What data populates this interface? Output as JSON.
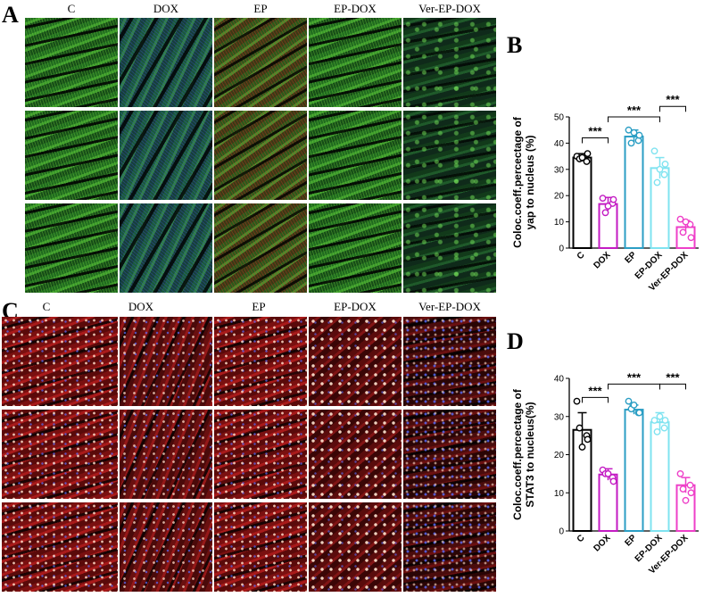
{
  "figure": {
    "panel_letters": {
      "a": "A",
      "b": "B",
      "c": "C",
      "d": "D"
    },
    "image_columns": [
      "C",
      "DOX",
      "EP",
      "EP-DOX",
      "Ver-EP-DOX"
    ],
    "colors": {
      "C": "#000000",
      "DOX": "#c31bc3",
      "EP": "#2b9ec4",
      "EP-DOX": "#7fe3f0",
      "Ver-EP-DOX": "#ee3fc8"
    }
  },
  "chart_data": [
    {
      "type": "bar",
      "panel": "B",
      "categories": [
        "C",
        "DOX",
        "EP",
        "EP-DOX",
        "Ver-EP-DOX"
      ],
      "values": [
        34.5,
        16.8,
        42.5,
        30.5,
        8.0
      ],
      "errors": [
        1.5,
        2.5,
        2.5,
        4.0,
        2.5
      ],
      "points": [
        [
          35,
          33,
          34,
          36,
          34.5
        ],
        [
          19,
          17,
          13.5,
          18.5,
          16
        ],
        [
          45,
          41,
          40,
          43,
          44
        ],
        [
          37,
          28,
          25,
          32,
          30
        ],
        [
          11,
          9,
          6,
          4,
          10
        ]
      ],
      "xlabel": "",
      "ylabel": "Coloc.coeff.percectage of yap to nucleus (%)",
      "ylabel_line1": "Coloc.coeff.percectage of",
      "ylabel_line2": "yap to nucleus (%)",
      "ylim": [
        0,
        50
      ],
      "yticks": [
        0,
        10,
        20,
        30,
        40,
        50
      ],
      "significance": [
        {
          "from": "C",
          "to": "DOX",
          "label": "***",
          "y": 42
        },
        {
          "from": "DOX",
          "to": "EP-DOX",
          "label": "***",
          "y": 50
        },
        {
          "from": "EP-DOX",
          "to": "Ver-EP-DOX",
          "label": "***",
          "y": 54
        }
      ],
      "grid": false
    },
    {
      "type": "bar",
      "panel": "D",
      "categories": [
        "C",
        "DOX",
        "EP",
        "EP-DOX",
        "Ver-EP-DOX"
      ],
      "values": [
        26.5,
        14.8,
        31.8,
        28.5,
        12.0
      ],
      "errors": [
        4.5,
        1.5,
        1.2,
        2.5,
        2.0
      ],
      "points": [
        [
          34,
          25,
          27,
          24,
          22
        ],
        [
          16,
          14,
          15,
          13,
          15
        ],
        [
          34,
          31,
          32,
          31,
          33
        ],
        [
          29,
          27,
          26,
          29,
          30
        ],
        [
          15,
          12,
          11,
          10,
          8
        ]
      ],
      "xlabel": "",
      "ylabel": "Coloc.coeff.percectage of STAT3 to nucleus(%)",
      "ylabel_line1": "Coloc.coeff.percectage of",
      "ylabel_line2": "STAT3 to nucleus(%)",
      "ylim": [
        0,
        40
      ],
      "yticks": [
        0,
        10,
        20,
        30,
        40
      ],
      "significance": [
        {
          "from": "C",
          "to": "DOX",
          "label": "***",
          "y": 35
        },
        {
          "from": "DOX",
          "to": "EP-DOX",
          "label": "***",
          "y": 38.5
        },
        {
          "from": "EP-DOX",
          "to": "Ver-EP-DOX",
          "label": "***",
          "y": 38.5
        }
      ],
      "grid": false
    }
  ]
}
